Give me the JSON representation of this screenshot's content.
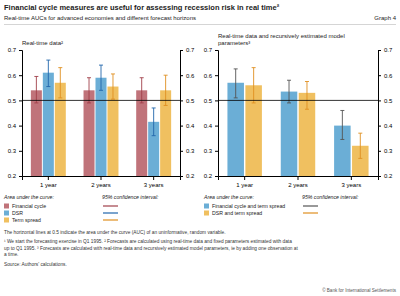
{
  "title": "Financial cycle measures are useful for assessing recession risk in real time²",
  "subtitle": "Real-time AUCs for advanced economies and different forecast horizons",
  "annotations": [
    "Graph 4",
    "The horizontal lines at 0.5 indicate the area under the curve (AUC) of an uninformative, random variable.",
    "¹ We start the forecasting exercise in Q1 1995.   ² Forecasts are calculated using real-time data and fixed parameters estimated with data\nup to Q1 1995.   ³ Forecasts are calculated with real-time data and recursively estimated model parameters, ie by adding one observation at\na time.",
    "Source: Authors' calculations.",
    "© Bank for International Settlements"
  ],
  "chart_data": [
    {
      "type": "bar",
      "title": "Real-time data²",
      "categories": [
        "1 year",
        "2 years",
        "3 years"
      ],
      "series": [
        {
          "name": "Financial cycle",
          "color": "#c0737a",
          "ci_color": "#a0404a",
          "values": [
            0.54,
            0.54,
            0.54
          ],
          "ci_low": [
            0.49,
            0.49,
            0.49
          ],
          "ci_high": [
            0.595,
            0.59,
            0.59
          ]
        },
        {
          "name": "DSR",
          "color": "#6baed6",
          "ci_color": "#2166ac",
          "values": [
            0.61,
            0.59,
            0.415
          ],
          "ci_low": [
            0.555,
            0.54,
            0.36
          ],
          "ci_high": [
            0.66,
            0.64,
            0.47
          ]
        },
        {
          "name": "Term spread",
          "color": "#f0c060",
          "ci_color": "#e09020",
          "values": [
            0.57,
            0.555,
            0.54
          ],
          "ci_low": [
            0.51,
            0.505,
            0.48
          ],
          "ci_high": [
            0.63,
            0.605,
            0.6
          ]
        }
      ],
      "hline": 0.5,
      "ylim": [
        0.2,
        0.7
      ],
      "yticks": [
        0.2,
        0.3,
        0.4,
        0.5,
        0.6,
        0.7
      ],
      "grid": false,
      "annotations": [
        "Area under the curve:",
        "95% confidence interval:"
      ]
    },
    {
      "type": "bar",
      "title": "Real-time data and recursively estimated model\nparameters³",
      "categories": [
        "1 year",
        "2 years",
        "3 years"
      ],
      "series": [
        {
          "name": "Financial cycle and term spread",
          "color": "#6baed6",
          "ci_color": "#555555",
          "values": [
            0.57,
            0.535,
            0.4
          ],
          "ci_low": [
            0.51,
            0.49,
            0.345
          ],
          "ci_high": [
            0.625,
            0.58,
            0.46
          ]
        },
        {
          "name": "DSR and term spread",
          "color": "#f0c060",
          "ci_color": "#e09020",
          "values": [
            0.56,
            0.53,
            0.32
          ],
          "ci_low": [
            0.49,
            0.465,
            0.27
          ],
          "ci_high": [
            0.63,
            0.575,
            0.37
          ]
        }
      ],
      "hline": 0.5,
      "ylim": [
        0.2,
        0.7
      ],
      "yticks": [
        0.2,
        0.3,
        0.4,
        0.5,
        0.6,
        0.7
      ],
      "grid": false,
      "annotations": [
        "Area under the curve:",
        "95% confidence interval:"
      ]
    }
  ]
}
